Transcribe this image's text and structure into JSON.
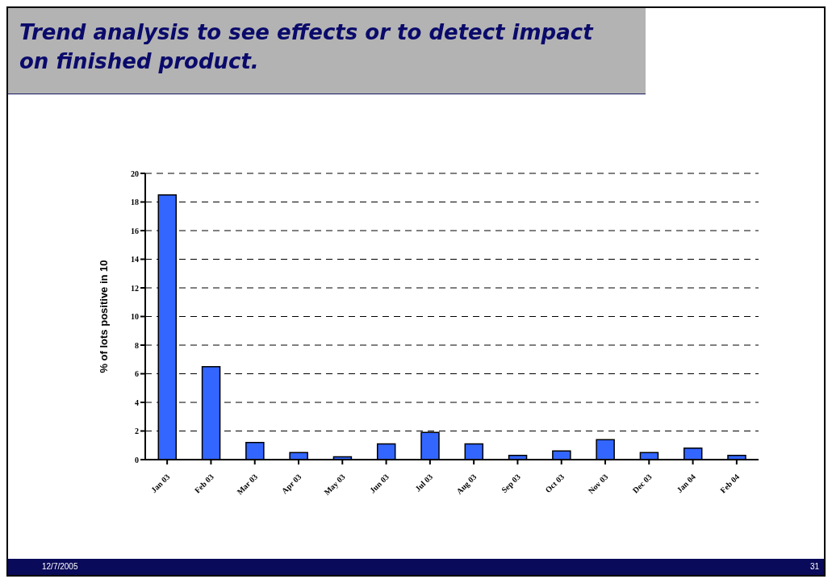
{
  "chart_data": {
    "type": "bar",
    "title": "Trend analysis to see effects or to detect impact on finished product.",
    "ylabel": "% of lots positive in 10",
    "categories": [
      "Jan 03",
      "Feb 03",
      "Mar 03",
      "Apr 03",
      "May 03",
      "Jun 03",
      "Jul 03",
      "Aug 03",
      "Sep 03",
      "Oct 03",
      "Nov 03",
      "Dec 03",
      "Jan 04",
      "Feb 04"
    ],
    "values": [
      18.5,
      6.5,
      1.2,
      0.5,
      0.2,
      1.1,
      1.9,
      1.1,
      0.3,
      0.6,
      1.4,
      0.5,
      0.8,
      0.3
    ],
    "color": "#3366ff",
    "ylim": [
      0,
      20
    ],
    "yticks": [
      0,
      2,
      4,
      6,
      8,
      10,
      12,
      14,
      16,
      18,
      20
    ],
    "grid": "y",
    "legend": false,
    "annotations": [
      "12/7/2005",
      "31"
    ]
  }
}
